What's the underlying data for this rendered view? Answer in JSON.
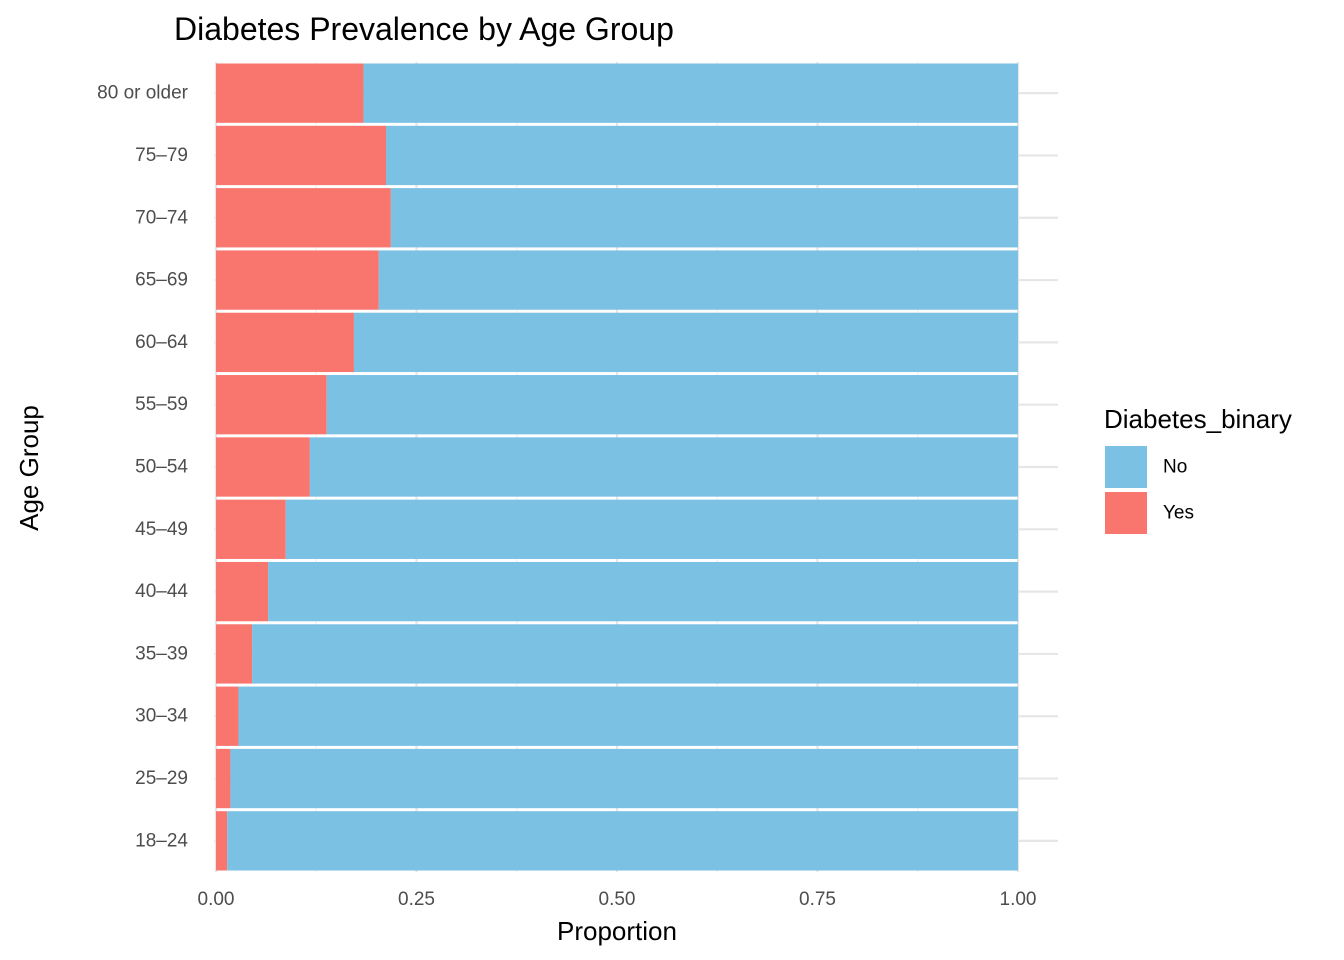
{
  "chart_data": {
    "type": "bar",
    "orientation": "horizontal",
    "stacked": true,
    "title": "Diabetes Prevalence by Age Group",
    "xlabel": "Proportion",
    "ylabel": "Age Group",
    "xlim": [
      0,
      1
    ],
    "x_ticks": [
      "0.00",
      "0.25",
      "0.50",
      "0.75",
      "1.00"
    ],
    "x_tick_values": [
      0,
      0.25,
      0.5,
      0.75,
      1.0
    ],
    "grid": true,
    "legend_position": "right",
    "legend_title": "Diabetes_binary",
    "categories": [
      "18–24",
      "25–29",
      "30–34",
      "35–39",
      "40–44",
      "45–49",
      "50–54",
      "55–59",
      "60–64",
      "65–69",
      "70–74",
      "75–79",
      "80 or older"
    ],
    "series": [
      {
        "name": "Yes",
        "color": "#F8766D",
        "values": [
          0.014,
          0.018,
          0.028,
          0.045,
          0.065,
          0.087,
          0.117,
          0.138,
          0.172,
          0.203,
          0.218,
          0.212,
          0.184
        ]
      },
      {
        "name": "No",
        "color": "#7AC1E4",
        "values": [
          0.986,
          0.982,
          0.972,
          0.955,
          0.935,
          0.913,
          0.883,
          0.862,
          0.828,
          0.797,
          0.782,
          0.788,
          0.816
        ]
      }
    ],
    "legend_order": [
      "No",
      "Yes"
    ]
  }
}
